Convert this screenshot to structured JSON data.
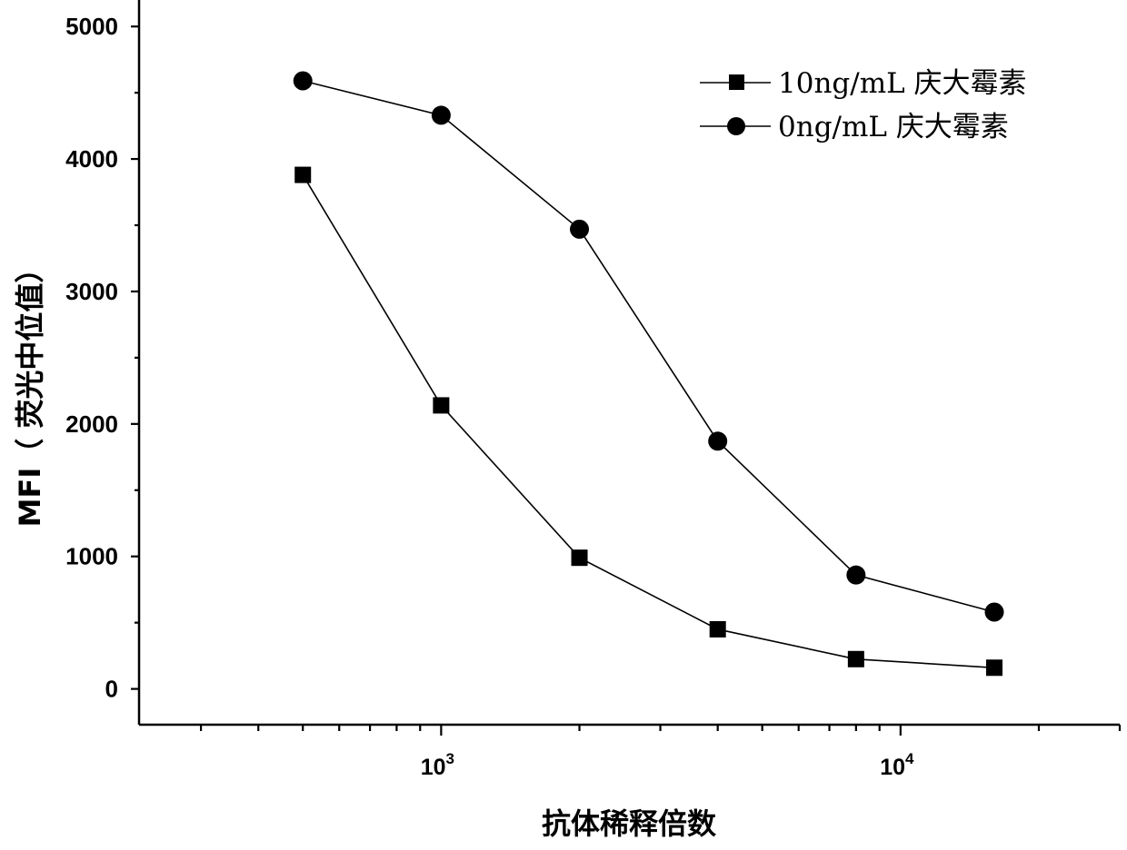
{
  "chart_data": {
    "type": "line",
    "x_scale": "log",
    "x": [
      500,
      1000,
      2000,
      4000,
      8000,
      16000
    ],
    "xlim": [
      220,
      30000
    ],
    "ylim": [
      -270,
      5200
    ],
    "xlabel": "抗体稀释倍数",
    "ylabel": "MFI（ 荧光中位值）",
    "y_ticks": [
      0,
      1000,
      2000,
      3000,
      4000,
      5000
    ],
    "x_ticks": [
      {
        "value": 1000,
        "base": "10",
        "exp": "3"
      },
      {
        "value": 10000,
        "base": "10",
        "exp": "4"
      }
    ],
    "legend_position": "top-right",
    "grid": false,
    "series": [
      {
        "name": "10ng/mL 庆大霉素",
        "marker": "square",
        "color": "#000000",
        "values": [
          3880,
          2140,
          990,
          450,
          225,
          160
        ]
      },
      {
        "name": "0ng/mL 庆大霉素",
        "marker": "circle",
        "color": "#000000",
        "values": [
          4590,
          4330,
          3470,
          1870,
          860,
          580
        ]
      }
    ]
  }
}
